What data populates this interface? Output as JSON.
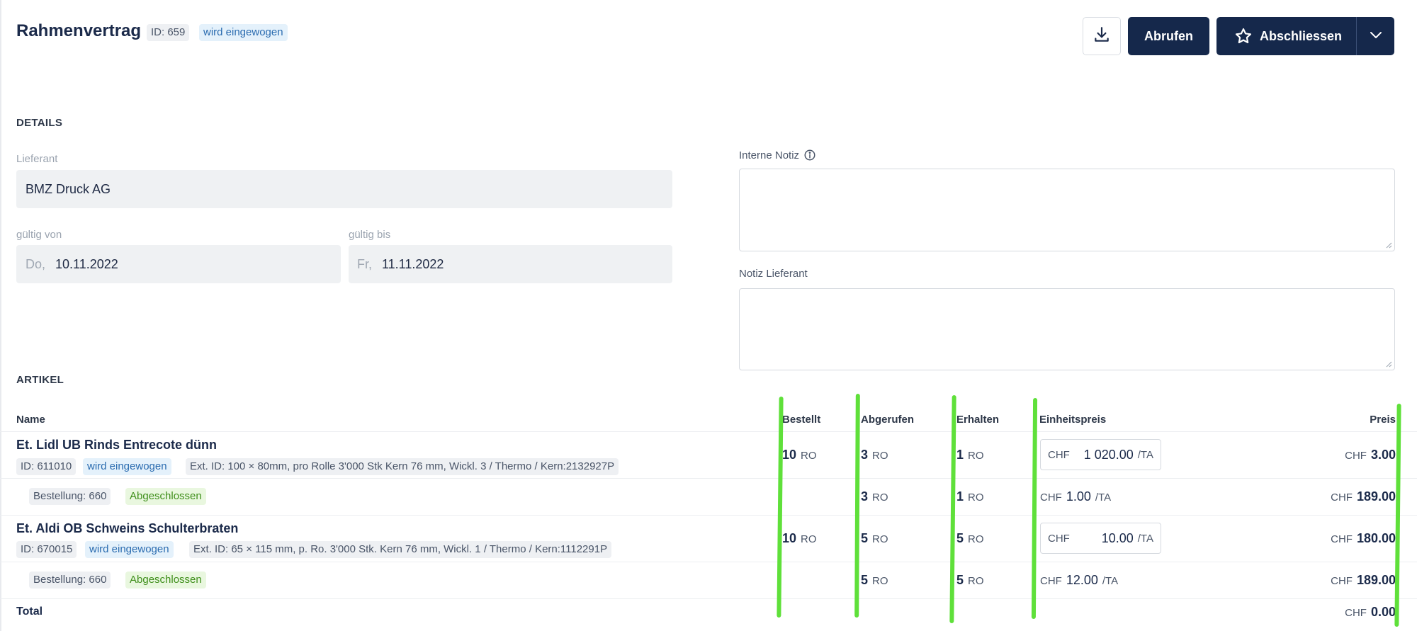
{
  "header": {
    "title": "Rahmenvertrag",
    "id_badge": "ID: 659",
    "status_badge": "wird eingewogen",
    "abrufen_label": "Abrufen",
    "abschliessen_label": "Abschliessen"
  },
  "details": {
    "section_title": "DETAILS",
    "lieferant_label": "Lieferant",
    "lieferant_value": "BMZ Druck AG",
    "gueltig_von_label": "gültig von",
    "gueltig_von_weekday": "Do,",
    "gueltig_von_value": "10.11.2022",
    "gueltig_bis_label": "gültig bis",
    "gueltig_bis_weekday": "Fr,",
    "gueltig_bis_value": "11.11.2022",
    "interne_notiz_label": "Interne Notiz",
    "notiz_lieferant_label": "Notiz Lieferant"
  },
  "artikel": {
    "section_title": "ARTIKEL",
    "columns": {
      "name": "Name",
      "bestellt": "Bestellt",
      "abgerufen": "Abgerufen",
      "erhalten": "Erhalten",
      "einheitspreis": "Einheitspreis",
      "preis": "Preis"
    },
    "items": [
      {
        "name": "Et. Lidl UB Rinds Entrecote dünn",
        "id": "ID: 611010",
        "status": "wird eingewogen",
        "ext": "Ext. ID: 100 × 80mm, pro Rolle 3'000 Stk Kern 76 mm, Wickl. 3 / Thermo / Kern:2132927P",
        "bestellt": "10",
        "abgerufen": "3",
        "erhalten": "1",
        "unit": "RO",
        "currency": "CHF",
        "unit_price": "1 020.00",
        "per": "/TA",
        "price": "3.00",
        "sub": {
          "bestellung": "Bestellung: 660",
          "status": "Abgeschlossen",
          "abgerufen": "3",
          "erhalten": "1",
          "unit_price": "1.00",
          "per": "/TA",
          "price": "189.00"
        }
      },
      {
        "name": "Et. Aldi OB Schweins Schulterbraten",
        "id": "ID: 670015",
        "status": "wird eingewogen",
        "ext": "Ext. ID: 65 × 115 mm, p. Ro. 3'000 Stk. Kern 76 mm, Wickl. 1 / Thermo / Kern:1112291P",
        "bestellt": "10",
        "abgerufen": "5",
        "erhalten": "5",
        "unit": "RO",
        "currency": "CHF",
        "unit_price": "10.00",
        "per": "/TA",
        "price": "180.00",
        "sub": {
          "bestellung": "Bestellung: 660",
          "status": "Abgeschlossen",
          "abgerufen": "5",
          "erhalten": "5",
          "unit_price": "12.00",
          "per": "/TA",
          "price": "189.00"
        }
      }
    ],
    "total_label": "Total",
    "total_currency": "CHF",
    "total_value": "0.00"
  },
  "colors": {
    "primary": "#15284b",
    "annotation_green": "#5fe03a"
  },
  "icons": [
    "download-icon",
    "star-icon",
    "chevron-down-icon",
    "info-icon"
  ]
}
